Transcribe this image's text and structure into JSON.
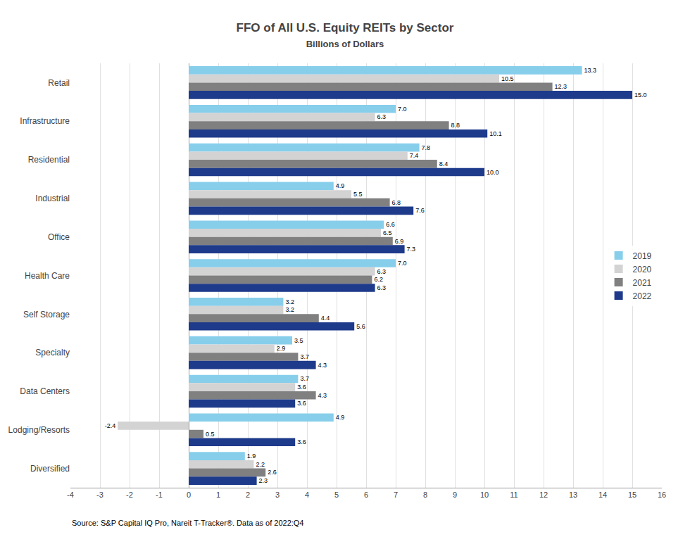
{
  "chart_data": {
    "type": "bar",
    "orientation": "horizontal",
    "title": "FFO of All U.S. Equity REITs by Sector",
    "subtitle": "Billions of Dollars",
    "categories": [
      "Retail",
      "Infrastructure",
      "Residential",
      "Industrial",
      "Office",
      "Health Care",
      "Self Storage",
      "Specialty",
      "Data Centers",
      "Lodging/Resorts",
      "Diversified"
    ],
    "series": [
      {
        "name": "2019",
        "color": "#87CEEB",
        "values": [
          13.3,
          7.0,
          7.8,
          4.9,
          6.6,
          7.0,
          3.2,
          3.5,
          3.7,
          4.9,
          1.9
        ],
        "value_labels": [
          "13.3",
          "7.0",
          "7.8",
          "4.9",
          "6.6",
          "7.0",
          "3.2",
          "3.5",
          "3.7",
          "4.9",
          "1.9"
        ]
      },
      {
        "name": "2020",
        "color": "#D3D3D3",
        "values": [
          10.5,
          6.3,
          7.4,
          5.5,
          6.5,
          6.3,
          3.2,
          2.9,
          3.6,
          -2.4,
          2.2
        ],
        "value_labels": [
          "10.5",
          "6.3",
          "7.4",
          "5.5",
          "6.5",
          "6.3",
          "3.2",
          "2.9",
          "3.6",
          "-2.4",
          "2.2"
        ]
      },
      {
        "name": "2021",
        "color": "#808080",
        "values": [
          12.3,
          8.8,
          8.4,
          6.8,
          6.9,
          6.2,
          4.4,
          3.7,
          4.3,
          0.5,
          2.6
        ],
        "value_labels": [
          "12.3",
          "8.8",
          "8.4",
          "6.8",
          "6.9",
          "6.2",
          "4.4",
          "3.7",
          "4.3",
          "0.5",
          "2.6"
        ]
      },
      {
        "name": "2022",
        "color": "#1E3A8A",
        "values": [
          15.0,
          10.1,
          10.0,
          7.6,
          7.3,
          6.3,
          5.6,
          4.3,
          3.6,
          3.6,
          2.3
        ],
        "value_labels": [
          "15.0",
          "10.1",
          "10.0",
          "7.6",
          "7.3",
          "6.3",
          "5.6",
          "4.3",
          "3.6",
          "3.6",
          "2.3"
        ]
      }
    ],
    "xlim": [
      -4,
      16
    ],
    "xticks": [
      -4,
      -3,
      -2,
      -1,
      0,
      1,
      2,
      3,
      4,
      5,
      6,
      7,
      8,
      9,
      10,
      11,
      12,
      13,
      14,
      15,
      16
    ],
    "grid": true,
    "legend": "right",
    "data_labels": true,
    "annotations": [
      "Source: S&P Capital IQ Pro, Nareit T-Tracker®. Data as of 2022:Q4"
    ]
  }
}
